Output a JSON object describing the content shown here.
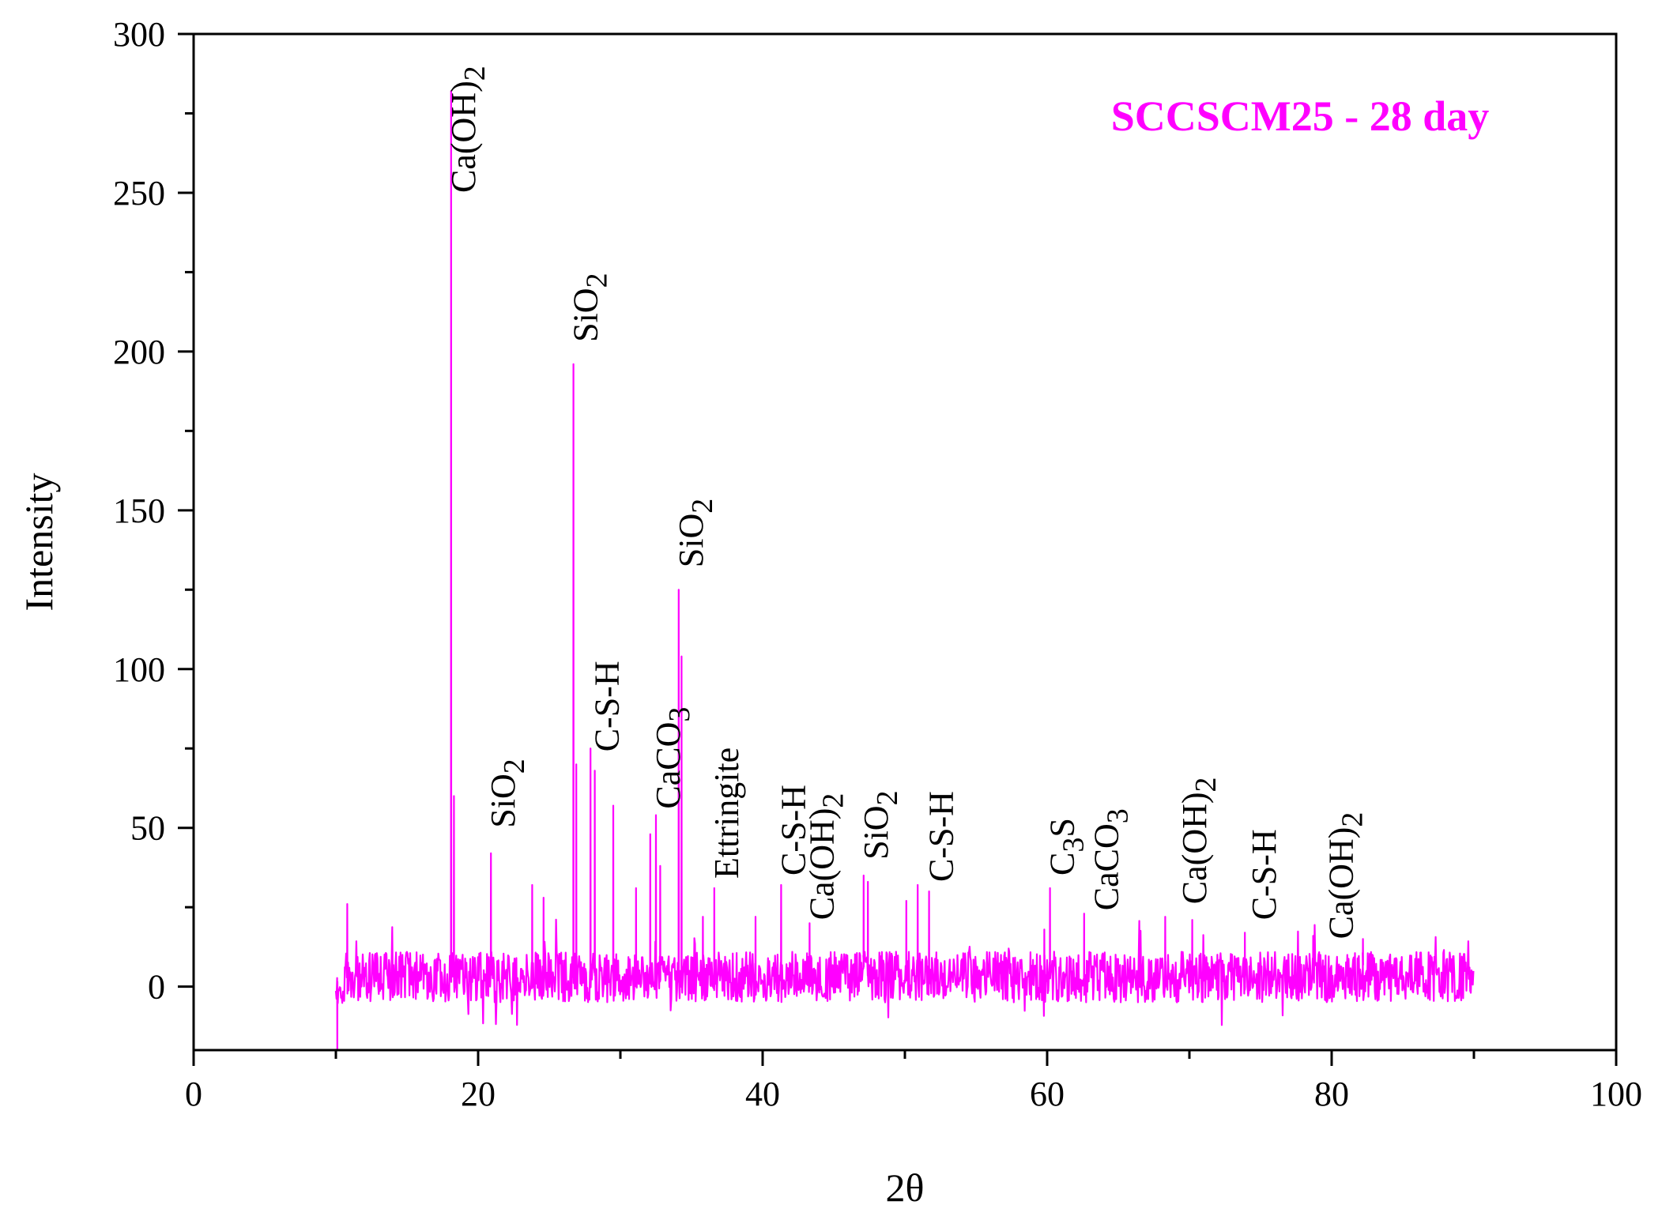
{
  "chart_data": {
    "type": "line",
    "title": "SCCSCM25 - 28 day",
    "xlabel": "2θ",
    "ylabel": "Intensity",
    "xlim": [
      0,
      100
    ],
    "ylim": [
      -20,
      300
    ],
    "xticks": [
      0,
      20,
      40,
      60,
      80,
      100
    ],
    "yticks": [
      0,
      50,
      100,
      150,
      200,
      250,
      300
    ],
    "grid": false,
    "legend": "none",
    "series_color": "#ff00ff",
    "title_color": "#ff00ff",
    "x_range": [
      10,
      90
    ],
    "baseline_noise": {
      "center": 3,
      "amplitude": 8
    },
    "peaks": [
      {
        "x": 10.1,
        "y": -20
      },
      {
        "x": 10.8,
        "y": 26
      },
      {
        "x": 18.1,
        "y": 282
      },
      {
        "x": 18.3,
        "y": 60
      },
      {
        "x": 20.9,
        "y": 42
      },
      {
        "x": 23.8,
        "y": 32
      },
      {
        "x": 24.6,
        "y": 28
      },
      {
        "x": 26.7,
        "y": 196
      },
      {
        "x": 26.9,
        "y": 70
      },
      {
        "x": 27.9,
        "y": 75
      },
      {
        "x": 28.2,
        "y": 68
      },
      {
        "x": 29.5,
        "y": 57
      },
      {
        "x": 31.1,
        "y": 31
      },
      {
        "x": 32.1,
        "y": 48
      },
      {
        "x": 32.5,
        "y": 54
      },
      {
        "x": 32.8,
        "y": 38
      },
      {
        "x": 34.1,
        "y": 125
      },
      {
        "x": 34.3,
        "y": 104
      },
      {
        "x": 35.8,
        "y": 22
      },
      {
        "x": 36.6,
        "y": 31
      },
      {
        "x": 39.5,
        "y": 22
      },
      {
        "x": 41.3,
        "y": 32
      },
      {
        "x": 43.3,
        "y": 20
      },
      {
        "x": 47.1,
        "y": 35
      },
      {
        "x": 47.4,
        "y": 33
      },
      {
        "x": 50.1,
        "y": 27
      },
      {
        "x": 50.9,
        "y": 32
      },
      {
        "x": 51.7,
        "y": 30
      },
      {
        "x": 59.8,
        "y": 18
      },
      {
        "x": 60.2,
        "y": 31
      },
      {
        "x": 62.6,
        "y": 23
      },
      {
        "x": 68.3,
        "y": 22
      },
      {
        "x": 70.2,
        "y": 21
      },
      {
        "x": 73.9,
        "y": 17
      },
      {
        "x": 78.7,
        "y": 16
      },
      {
        "x": 82.2,
        "y": 15
      }
    ],
    "annotations": [
      {
        "text": "Ca(OH)",
        "sub": "2",
        "x": 18.1,
        "y": 248
      },
      {
        "text": "SiO",
        "sub": "2",
        "x": 20.9,
        "y": 48
      },
      {
        "text": "SiO",
        "sub": "2",
        "x": 26.7,
        "y": 201
      },
      {
        "text": "C-S-H",
        "sub": "",
        "x": 28.2,
        "y": 72
      },
      {
        "text": "CaCO",
        "sub": "3",
        "x": 32.5,
        "y": 54
      },
      {
        "text": "SiO",
        "sub": "2",
        "x": 34.1,
        "y": 130
      },
      {
        "text": "Ettringite",
        "sub": "",
        "x": 36.6,
        "y": 32
      },
      {
        "text": "C-S-H",
        "sub": "",
        "x": 41.3,
        "y": 33
      },
      {
        "text": "Ca(OH)",
        "sub": "2",
        "x": 43.3,
        "y": 19
      },
      {
        "text": "SiO",
        "sub": "2",
        "x": 47.1,
        "y": 38
      },
      {
        "text": "C-S-H",
        "sub": "",
        "x": 51.7,
        "y": 31
      },
      {
        "text": "C",
        "sub": "3",
        "tail": "S",
        "x": 60.2,
        "y": 33
      },
      {
        "text": "CaCO",
        "sub": "3",
        "x": 63.3,
        "y": 22
      },
      {
        "text": "Ca(OH)",
        "sub": "2",
        "x": 69.5,
        "y": 24
      },
      {
        "text": "C-S-H",
        "sub": "",
        "x": 74.4,
        "y": 19
      },
      {
        "text": "Ca(OH)",
        "sub": "2",
        "x": 79.8,
        "y": 13
      }
    ]
  }
}
